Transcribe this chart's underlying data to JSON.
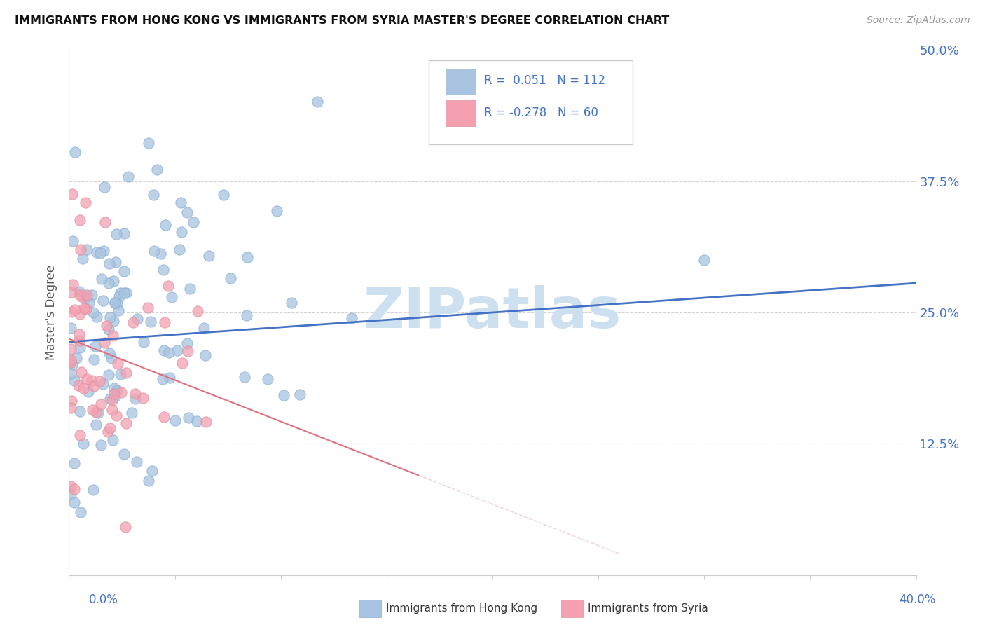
{
  "title": "IMMIGRANTS FROM HONG KONG VS IMMIGRANTS FROM SYRIA MASTER'S DEGREE CORRELATION CHART",
  "source": "Source: ZipAtlas.com",
  "ylabel": "Master's Degree",
  "y_tick_positions": [
    0.0,
    0.125,
    0.25,
    0.375,
    0.5
  ],
  "y_tick_labels": [
    "",
    "12.5%",
    "25.0%",
    "37.5%",
    "50.0%"
  ],
  "xlim": [
    0.0,
    0.4
  ],
  "ylim": [
    0.0,
    0.5
  ],
  "hk_R": 0.051,
  "hk_N": 112,
  "sy_R": -0.278,
  "sy_N": 60,
  "hk_color": "#a8c4e0",
  "sy_color": "#f4a0b0",
  "hk_line_color": "#4472c4",
  "sy_line_color": "#e07080",
  "watermark": "ZIPatlas",
  "watermark_color": "#cce0f0",
  "hk_line_x0": 0.0,
  "hk_line_y0": 0.222,
  "hk_line_x1": 0.4,
  "hk_line_y1": 0.278,
  "sy_line_x0": 0.0,
  "sy_line_y0": 0.225,
  "sy_line_x1": 0.165,
  "sy_line_y1": 0.095
}
